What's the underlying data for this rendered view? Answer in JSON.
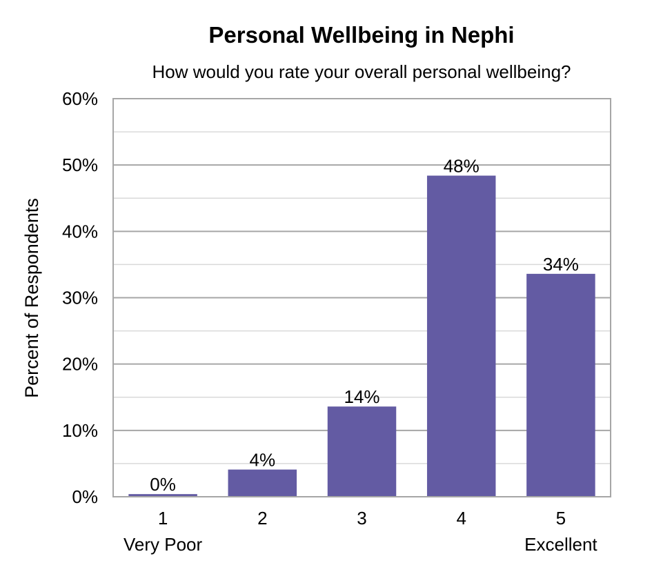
{
  "chart_data": {
    "type": "bar",
    "title": "Personal Wellbeing in Nephi",
    "subtitle": "How would you rate your overall personal wellbeing?",
    "ylabel": "Percent of Respondents",
    "xlabel": "",
    "categories": [
      "1",
      "2",
      "3",
      "4",
      "5"
    ],
    "category_sublabels": [
      "Very Poor",
      "",
      "",
      "",
      "Excellent"
    ],
    "values": [
      0.4,
      4.1,
      13.6,
      48.4,
      33.6
    ],
    "data_labels": [
      "0%",
      "4%",
      "14%",
      "48%",
      "34%"
    ],
    "ylim": [
      0,
      60
    ],
    "yticks": [
      0,
      10,
      20,
      30,
      40,
      50,
      60
    ],
    "ytick_labels": [
      "0%",
      "10%",
      "20%",
      "30%",
      "40%",
      "50%",
      "60%"
    ],
    "grid": true,
    "legend": "none",
    "bar_color": "#635ba3"
  }
}
